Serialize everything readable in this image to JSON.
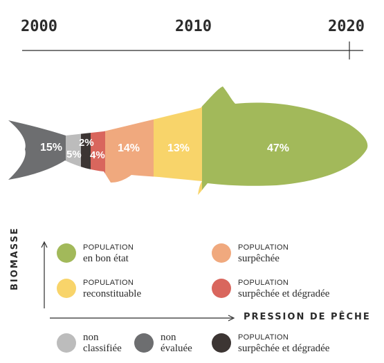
{
  "chart_data": {
    "type": "proportion-pictogram",
    "timeline": {
      "ticks": [
        "2000",
        "2010",
        "2020"
      ]
    },
    "segments": [
      {
        "key": "non_evaluee",
        "value": 15,
        "label": "15%",
        "color": "#6d6e70"
      },
      {
        "key": "non_classifiee",
        "value": 5,
        "label": "5%",
        "color": "#bcbcbc"
      },
      {
        "key": "surpechee_degradee_dark",
        "value": 2,
        "label": "2%",
        "color": "#3c3533"
      },
      {
        "key": "surpechee_degradee",
        "value": 4,
        "label": "4%",
        "color": "#d9665d"
      },
      {
        "key": "surpechee",
        "value": 14,
        "label": "14%",
        "color": "#f0a97e"
      },
      {
        "key": "reconstituable",
        "value": 13,
        "label": "13%",
        "color": "#f8d46a"
      },
      {
        "key": "bon_etat",
        "value": 47,
        "label": "47%",
        "color": "#a2b95a"
      }
    ],
    "legend": [
      {
        "key": "bon_etat",
        "top": "POPULATION",
        "bottom": "en bon état",
        "color": "#a2b95a"
      },
      {
        "key": "surpechee",
        "top": "POPULATION",
        "bottom": "surpêchée",
        "color": "#f0a97e"
      },
      {
        "key": "reconstituable",
        "top": "POPULATION",
        "bottom": "reconstituable",
        "color": "#f8d46a"
      },
      {
        "key": "surpechee_degradee",
        "top": "POPULATION",
        "bottom": "surpêchée et dégradée",
        "color": "#d9665d"
      },
      {
        "key": "non_classifiee",
        "top": "non",
        "bottom": "classifiée",
        "color": "#bcbcbc"
      },
      {
        "key": "non_evaluee",
        "top": "non",
        "bottom": "évaluée",
        "color": "#6d6e70"
      },
      {
        "key": "surpechee_degradee_dark",
        "top": "POPULATION",
        "bottom": "surpêchée et dégradée",
        "color": "#3c3533"
      }
    ],
    "axes": {
      "y_label": "BIOMASSE",
      "x_label": "PRESSION DE PÊCHE"
    }
  }
}
